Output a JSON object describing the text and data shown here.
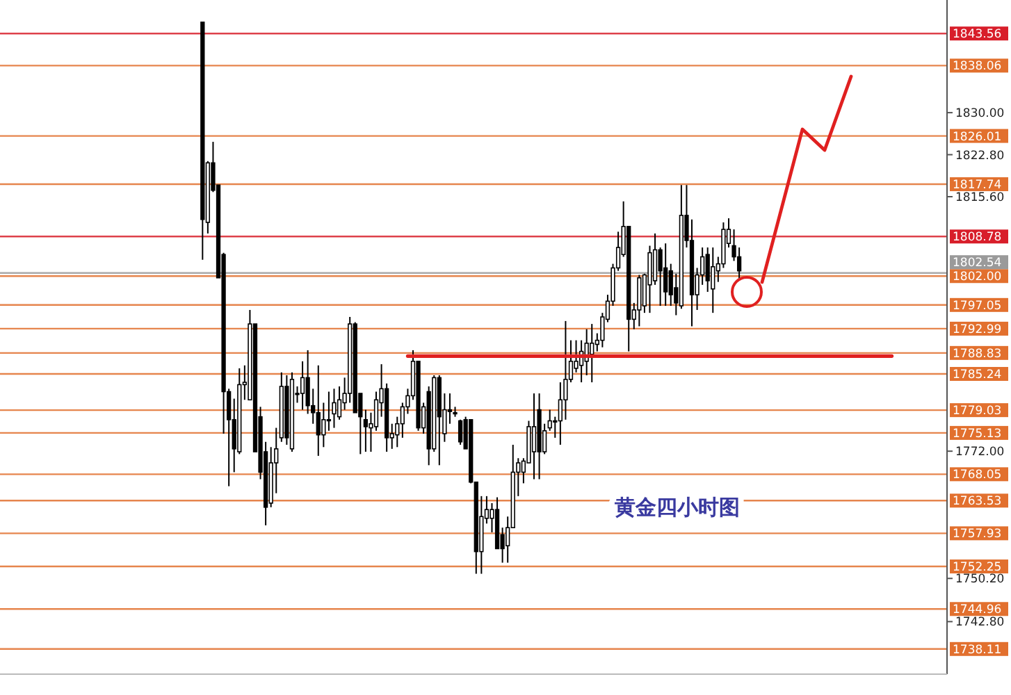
{
  "chart_data": {
    "type": "candlestick",
    "categories": [
      null,
      null,
      null,
      null,
      null,
      null,
      null,
      null,
      null,
      null,
      null,
      null,
      null,
      null,
      null,
      null,
      null,
      null,
      null,
      null,
      null,
      null,
      null,
      null,
      null,
      null,
      null,
      null,
      null,
      null,
      null,
      null,
      null,
      null,
      null,
      null,
      null,
      null,
      null,
      null,
      null,
      null,
      null,
      null,
      null,
      null,
      null,
      null,
      null,
      null,
      null,
      null,
      null,
      null,
      null,
      null,
      null,
      null,
      null,
      null,
      null,
      null,
      null,
      null,
      null,
      null,
      null,
      null,
      null,
      null,
      null,
      null,
      null,
      null,
      null,
      null,
      null,
      null,
      null,
      null,
      null,
      null,
      null,
      null,
      null,
      null,
      null,
      null,
      null,
      null,
      null,
      null,
      null,
      null,
      null,
      null,
      null,
      null,
      null,
      null,
      null,
      null,
      null,
      null,
      null,
      null,
      null,
      null,
      null,
      null,
      null,
      null,
      null,
      null,
      null,
      null,
      null,
      null,
      null,
      null,
      null,
      null,
      null,
      null,
      null,
      null,
      null,
      null,
      null,
      null,
      null,
      null,
      null,
      null,
      null,
      null,
      null,
      null,
      null,
      null,
      null,
      null,
      null,
      null,
      null,
      null,
      null,
      null,
      null,
      null,
      null,
      null,
      null,
      null,
      null,
      null,
      null,
      null,
      null,
      null,
      null,
      null,
      null,
      null,
      null,
      null,
      null,
      null,
      null,
      null,
      null,
      null,
      null,
      null,
      null,
      null,
      null,
      null,
      null,
      null
    ],
    "ohlc": [
      null,
      null,
      null,
      null,
      null,
      null,
      null,
      null,
      null,
      null,
      null,
      null,
      null,
      null,
      null,
      null,
      null,
      null,
      null,
      null,
      null,
      null,
      null,
      null,
      null,
      null,
      null,
      null,
      null,
      null,
      null,
      null,
      null,
      null,
      null,
      null,
      null,
      null,
      [
        1845.5,
        1845.5,
        1804.8,
        1811.7
      ],
      [
        1811.2,
        1821.7,
        1809.3,
        1821.4
      ],
      [
        1821.4,
        1825.0,
        1816.4,
        1816.7
      ],
      [
        1817.6,
        1817.6,
        1801.7,
        1801.7
      ],
      [
        1805.7,
        1806.0,
        1775.0,
        1782.2
      ],
      [
        1782.2,
        1782.7,
        1766.0,
        1777.4
      ],
      [
        1777.4,
        1781.0,
        1768.4,
        1772.4
      ],
      [
        1771.9,
        1786.2,
        1771.5,
        1783.4
      ],
      [
        1783.4,
        1786.7,
        1780.8,
        1783.8
      ],
      [
        1780.8,
        1796.2,
        1780.8,
        1793.8
      ],
      [
        1793.8,
        1793.8,
        1771.9,
        1771.9
      ],
      [
        1777.9,
        1779.6,
        1767.2,
        1768.4
      ],
      [
        1771.9,
        1773.6,
        1759.3,
        1762.4
      ],
      [
        1763.1,
        1772.7,
        1762.4,
        1770.0
      ],
      [
        1770.0,
        1776.0,
        1764.8,
        1772.4
      ],
      [
        1774.3,
        1785.5,
        1773.6,
        1783.1
      ],
      [
        1783.1,
        1785.0,
        1773.1,
        1774.3
      ],
      [
        1772.4,
        1785.5,
        1771.9,
        1784.3
      ],
      [
        1781.9,
        1783.1,
        1780.3,
        1781.9
      ],
      [
        1781.9,
        1787.4,
        1779.1,
        1784.6
      ],
      [
        1784.6,
        1789.3,
        1778.4,
        1779.8
      ],
      [
        1779.8,
        1782.7,
        1776.7,
        1778.6
      ],
      [
        1778.6,
        1786.7,
        1771.2,
        1774.8
      ],
      [
        1774.8,
        1780.3,
        1772.7,
        1777.4
      ],
      [
        1777.4,
        1782.2,
        1775.5,
        1777.4
      ],
      [
        1778.4,
        1782.7,
        1776.0,
        1780.3
      ],
      [
        1777.9,
        1783.1,
        1777.4,
        1780.8
      ],
      [
        1780.3,
        1784.6,
        1779.1,
        1781.9
      ],
      [
        1781.9,
        1795.0,
        1780.3,
        1793.8
      ],
      [
        1793.8,
        1794.1,
        1778.6,
        1778.6
      ],
      [
        1781.9,
        1781.9,
        1771.5,
        1777.9
      ],
      [
        1777.4,
        1779.1,
        1771.9,
        1776.2
      ],
      [
        1776.0,
        1778.6,
        1771.9,
        1776.7
      ],
      [
        1776.2,
        1782.2,
        1775.5,
        1780.8
      ],
      [
        1780.3,
        1786.9,
        1777.9,
        1782.7
      ],
      [
        1782.7,
        1783.6,
        1771.9,
        1774.3
      ],
      [
        1774.3,
        1776.7,
        1772.4,
        1775.0
      ],
      [
        1774.8,
        1777.9,
        1772.7,
        1776.7
      ],
      [
        1776.7,
        1780.3,
        1774.3,
        1779.6
      ],
      [
        1779.6,
        1782.7,
        1778.4,
        1781.5
      ],
      [
        1781.5,
        1789.3,
        1780.8,
        1787.4
      ],
      [
        1787.4,
        1787.4,
        1775.5,
        1776.0
      ],
      [
        1776.0,
        1780.3,
        1775.0,
        1779.6
      ],
      [
        1782.2,
        1783.1,
        1769.6,
        1772.4
      ],
      [
        1772.4,
        1785.0,
        1771.9,
        1784.6
      ],
      [
        1784.6,
        1785.0,
        1769.6,
        1777.9
      ],
      [
        1775.0,
        1781.9,
        1773.6,
        1779.1
      ],
      [
        1779.1,
        1781.9,
        1776.7,
        1778.8
      ],
      [
        1778.6,
        1779.6,
        1777.9,
        1778.4
      ],
      [
        1777.2,
        1777.4,
        1773.1,
        1773.6
      ],
      [
        1777.4,
        1777.9,
        1772.4,
        1772.4
      ],
      [
        1777.4,
        1777.4,
        1766.5,
        1766.7
      ],
      [
        1766.7,
        1766.7,
        1751.0,
        1754.8
      ],
      [
        1754.8,
        1764.3,
        1751.0,
        1760.8
      ],
      [
        1760.5,
        1764.3,
        1759.6,
        1762.0
      ],
      [
        1760.5,
        1763.1,
        1758.1,
        1762.0
      ],
      [
        1762.0,
        1764.1,
        1755.3,
        1755.3
      ],
      [
        1757.7,
        1758.9,
        1752.9,
        1755.3
      ],
      [
        1755.8,
        1760.8,
        1752.9,
        1758.9
      ],
      [
        1758.9,
        1773.1,
        1758.9,
        1768.4
      ],
      [
        1768.4,
        1770.8,
        1764.3,
        1770.0
      ],
      [
        1768.4,
        1770.8,
        1766.5,
        1770.3
      ],
      [
        1770.0,
        1777.2,
        1770.0,
        1776.2
      ],
      [
        1771.9,
        1781.9,
        1767.2,
        1776.2
      ],
      [
        1779.1,
        1781.9,
        1767.2,
        1771.9
      ],
      [
        1771.9,
        1776.7,
        1771.5,
        1775.5
      ],
      [
        1776.0,
        1779.1,
        1775.5,
        1777.2
      ],
      [
        1777.2,
        1777.9,
        1774.3,
        1777.0
      ],
      [
        1777.2,
        1783.8,
        1773.1,
        1780.8
      ],
      [
        1780.8,
        1794.3,
        1777.4,
        1784.3
      ],
      [
        1784.3,
        1791.0,
        1783.8,
        1787.4
      ],
      [
        1786.2,
        1791.0,
        1785.5,
        1787.4
      ],
      [
        1786.7,
        1791.0,
        1783.8,
        1789.1
      ],
      [
        1787.4,
        1792.9,
        1785.0,
        1790.5
      ],
      [
        1788.6,
        1793.8,
        1783.8,
        1790.5
      ],
      [
        1790.3,
        1792.2,
        1789.1,
        1791.0
      ],
      [
        1791.0,
        1795.7,
        1789.8,
        1795.0
      ],
      [
        1794.6,
        1798.8,
        1794.1,
        1797.7
      ],
      [
        1797.7,
        1804.1,
        1796.9,
        1803.4
      ],
      [
        1803.4,
        1809.6,
        1802.9,
        1806.9
      ],
      [
        1805.7,
        1814.8,
        1805.3,
        1810.5
      ],
      [
        1810.5,
        1810.5,
        1789.1,
        1794.6
      ],
      [
        1794.6,
        1797.4,
        1792.9,
        1796.2
      ],
      [
        1796.2,
        1802.2,
        1793.4,
        1801.7
      ],
      [
        1796.9,
        1802.4,
        1795.7,
        1802.2
      ],
      [
        1800.5,
        1807.2,
        1795.7,
        1806.0
      ],
      [
        1801.2,
        1809.3,
        1800.5,
        1806.5
      ],
      [
        1806.5,
        1806.9,
        1796.9,
        1802.9
      ],
      [
        1803.4,
        1807.6,
        1796.9,
        1799.3
      ],
      [
        1802.9,
        1804.1,
        1796.9,
        1798.8
      ],
      [
        1800.0,
        1802.4,
        1795.3,
        1797.4
      ],
      [
        1796.9,
        1817.6,
        1796.4,
        1812.4
      ],
      [
        1812.4,
        1817.6,
        1806.9,
        1808.1
      ],
      [
        1808.1,
        1811.7,
        1793.4,
        1798.8
      ],
      [
        1798.8,
        1803.4,
        1796.2,
        1802.2
      ],
      [
        1802.2,
        1806.9,
        1800.5,
        1805.3
      ],
      [
        1805.7,
        1806.9,
        1799.3,
        1801.2
      ],
      [
        1799.8,
        1806.9,
        1795.7,
        1803.6
      ],
      [
        1802.9,
        1805.3,
        1801.0,
        1804.1
      ],
      [
        1804.1,
        1811.2,
        1803.4,
        1810.0
      ],
      [
        1807.6,
        1811.9,
        1806.9,
        1810.0
      ],
      [
        1807.2,
        1810.0,
        1804.6,
        1805.3
      ],
      [
        1805.3,
        1806.9,
        1801.2,
        1802.9
      ],
      null,
      null,
      null,
      null,
      null,
      null,
      null,
      null,
      null,
      null,
      null,
      null,
      null,
      null,
      null,
      null,
      null,
      null,
      null,
      null,
      null,
      null,
      null,
      null,
      null,
      null,
      null,
      null,
      null,
      null,
      null,
      null,
      null,
      null,
      null,
      null,
      null,
      null,
      null
    ],
    "ylim": [
      1733.8,
      1849.3
    ],
    "yticks": [
      {
        "value": 1830,
        "label": "1830.00"
      },
      {
        "value": 1822.8,
        "label": "1822.80"
      },
      {
        "value": 1815.6,
        "label": "1815.60"
      },
      {
        "value": 1772,
        "label": "1772.00"
      },
      {
        "value": 1750.2,
        "label": "1750.20"
      },
      {
        "value": 1742.8,
        "label": "1742.80"
      }
    ],
    "tick_labels": "y",
    "ref_lines": [
      {
        "axis": "y",
        "value": 1843.56,
        "label": "1843.56",
        "color": "#d81e2a"
      },
      {
        "axis": "y",
        "value": 1838.06,
        "label": "1838.06",
        "color": "#e2702e"
      },
      {
        "axis": "y",
        "value": 1826.01,
        "label": "1826.01",
        "color": "#e2702e"
      },
      {
        "axis": "y",
        "value": 1817.74,
        "label": "1817.74",
        "color": "#e2702e"
      },
      {
        "axis": "y",
        "value": 1808.78,
        "label": "1808.78",
        "color": "#d81e2a"
      },
      {
        "axis": "y",
        "value": 1802.54,
        "label": "1802.54",
        "color": "#9a9a9a"
      },
      {
        "axis": "y",
        "value": 1802.0,
        "label": "1802.00",
        "color": "#e2702e"
      },
      {
        "axis": "y",
        "value": 1797.05,
        "label": "1797.05",
        "color": "#e2702e"
      },
      {
        "axis": "y",
        "value": 1792.99,
        "label": "1792.99",
        "color": "#e2702e"
      },
      {
        "axis": "y",
        "value": 1788.83,
        "label": "1788.83",
        "color": "#e2702e"
      },
      {
        "axis": "y",
        "value": 1785.24,
        "label": "1785.24",
        "color": "#e2702e"
      },
      {
        "axis": "y",
        "value": 1779.03,
        "label": "1779.03",
        "color": "#e2702e"
      },
      {
        "axis": "y",
        "value": 1775.13,
        "label": "1775.13",
        "color": "#e2702e"
      },
      {
        "axis": "y",
        "value": 1768.05,
        "label": "1768.05",
        "color": "#e2702e"
      },
      {
        "axis": "y",
        "value": 1763.53,
        "label": "1763.53",
        "color": "#e2702e"
      },
      {
        "axis": "y",
        "value": 1757.93,
        "label": "1757.93",
        "color": "#e2702e"
      },
      {
        "axis": "y",
        "value": 1752.25,
        "label": "1752.25",
        "color": "#e2702e"
      },
      {
        "axis": "y",
        "value": 1744.96,
        "label": "1744.96",
        "color": "#e2702e"
      },
      {
        "axis": "y",
        "value": 1738.11,
        "label": "1738.11",
        "color": "#e2702e"
      }
    ],
    "series": [
      {
        "type": "line",
        "color": "#e02020",
        "values": [
          null,
          null,
          null,
          null,
          null,
          null,
          null,
          null,
          null,
          null,
          null,
          null,
          null,
          null,
          null,
          null,
          null,
          null,
          null,
          null,
          null,
          null,
          null,
          null,
          null,
          null,
          null,
          null,
          null,
          null,
          null,
          null,
          null,
          null,
          null,
          null,
          null,
          null,
          null,
          null,
          null,
          null,
          null,
          null,
          null,
          null,
          null,
          null,
          null,
          null,
          null,
          null,
          null,
          null,
          null,
          null,
          null,
          null,
          null,
          null,
          null,
          null,
          null,
          null,
          null,
          null,
          null,
          null,
          null,
          null,
          null,
          null,
          null,
          null,
          null,
          null,
          null,
          1788.3,
          1788.3,
          1788.3,
          1788.3,
          1788.3,
          1788.3,
          1788.3,
          1788.3,
          1788.3,
          1788.3,
          1788.3,
          1788.3,
          1788.3,
          1788.3,
          1788.3,
          1788.3,
          1788.3,
          1788.3,
          1788.3,
          1788.3,
          1788.3,
          1788.3,
          1788.3,
          1788.3,
          1788.3,
          1788.3,
          1788.3,
          1788.3,
          1788.3,
          1788.3,
          1788.3,
          1788.3,
          1788.3,
          1788.3,
          1788.3,
          1788.3,
          1788.3,
          1788.3,
          1788.3,
          1788.3,
          1788.3,
          1788.3,
          1788.3,
          1788.3,
          1788.3,
          1788.3,
          1788.3,
          1788.3,
          1788.3,
          1788.3,
          1788.3,
          1788.3,
          1788.3,
          1788.3,
          1788.3,
          1788.3,
          1788.3,
          1788.3,
          1788.3,
          1788.3,
          1788.3,
          1788.3,
          1788.3,
          1788.3,
          1788.3,
          1788.3,
          1788.3,
          1788.3,
          1788.3,
          1788.3,
          1788.3,
          1788.3,
          1788.3,
          1788.3,
          1788.3,
          1788.3,
          1788.3,
          1788.3,
          1788.3,
          1788.3,
          1788.3,
          1788.3,
          1788.3,
          1788.3,
          1788.3,
          1788.3,
          1788.3,
          1788.3,
          1788.3,
          1788.3,
          1788.3,
          1788.3,
          1788.3,
          null,
          null,
          null,
          null,
          null,
          null,
          null,
          null,
          null,
          null
        ]
      }
    ],
    "annotations": [
      "黄金四小时图"
    ]
  }
}
